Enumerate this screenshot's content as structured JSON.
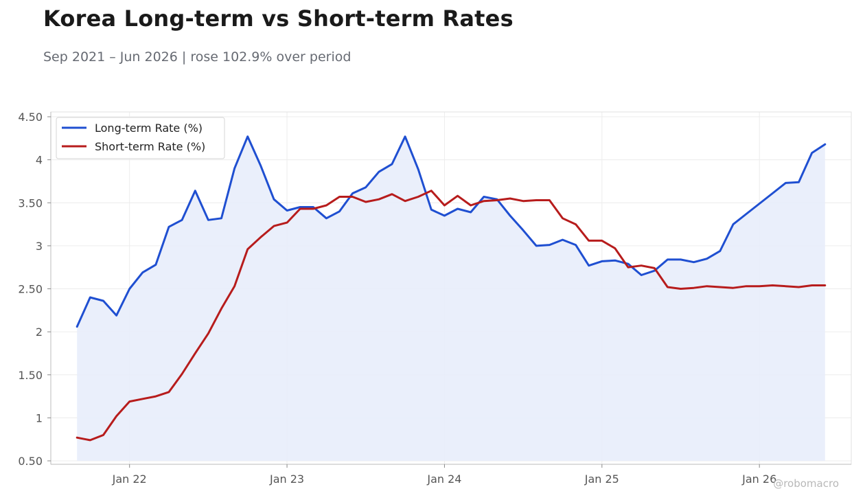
{
  "header": {
    "title": "Korea Long-term vs Short-term Rates",
    "subtitle": "Sep 2021 – Jun 2026 | rose 102.9% over period"
  },
  "watermark": "@robomacro",
  "colors": {
    "long": "#1f4fd1",
    "short": "#b71c1c",
    "fill": "#e8edfb",
    "grid": "#ececec",
    "axis": "#555"
  },
  "chart_data": {
    "type": "line",
    "title": "Korea Long-term vs Short-term Rates",
    "xlabel": "",
    "ylabel": "",
    "ylim": [
      0.5,
      4.5
    ],
    "xlim": [
      "2021-07",
      "2026-08"
    ],
    "grid": true,
    "legend": "top-left",
    "yticks": [
      0.5,
      1,
      1.5,
      2,
      2.5,
      3,
      3.5,
      4,
      4.5
    ],
    "ytick_labels": [
      "0.50",
      "1",
      "1.50",
      "2",
      "2.50",
      "3",
      "3.50",
      "4",
      "4.50"
    ],
    "xticks": [
      "2022-01",
      "2023-01",
      "2024-01",
      "2025-01",
      "2026-01"
    ],
    "xtick_labels": [
      "Jan 22",
      "Jan 23",
      "Jan 24",
      "Jan 25",
      "Jan 26"
    ],
    "x": [
      "2021-09",
      "2021-10",
      "2021-11",
      "2021-12",
      "2022-01",
      "2022-02",
      "2022-03",
      "2022-04",
      "2022-05",
      "2022-06",
      "2022-07",
      "2022-08",
      "2022-09",
      "2022-10",
      "2022-11",
      "2022-12",
      "2023-01",
      "2023-02",
      "2023-03",
      "2023-04",
      "2023-05",
      "2023-06",
      "2023-07",
      "2023-08",
      "2023-09",
      "2023-10",
      "2023-11",
      "2023-12",
      "2024-01",
      "2024-02",
      "2024-03",
      "2024-04",
      "2024-05",
      "2024-06",
      "2024-07",
      "2024-08",
      "2024-09",
      "2024-10",
      "2024-11",
      "2024-12",
      "2025-01",
      "2025-02",
      "2025-03",
      "2025-04",
      "2025-05",
      "2025-06",
      "2025-07",
      "2025-08",
      "2025-09",
      "2025-10",
      "2025-11",
      "2025-12",
      "2026-01",
      "2026-02",
      "2026-03",
      "2026-04",
      "2026-05",
      "2026-06"
    ],
    "series": [
      {
        "name": "Long-term Rate (%)",
        "fill": true,
        "values": [
          2.06,
          2.4,
          2.36,
          2.19,
          2.5,
          2.69,
          2.78,
          3.22,
          3.3,
          3.64,
          3.3,
          3.32,
          3.9,
          4.27,
          3.93,
          3.54,
          3.41,
          3.45,
          3.45,
          3.32,
          3.4,
          3.61,
          3.68,
          3.86,
          3.95,
          4.27,
          3.89,
          3.42,
          3.35,
          3.43,
          3.39,
          3.57,
          3.54,
          3.35,
          3.18,
          3.0,
          3.01,
          3.07,
          3.01,
          2.77,
          2.82,
          2.83,
          2.79,
          2.66,
          2.71,
          2.84,
          2.84,
          2.81,
          2.85,
          2.94,
          3.25,
          3.37,
          3.49,
          3.61,
          3.73,
          3.74,
          4.08,
          4.18
        ]
      },
      {
        "name": "Short-term Rate (%)",
        "fill": false,
        "values": [
          0.77,
          0.74,
          0.8,
          1.02,
          1.19,
          1.22,
          1.25,
          1.3,
          1.51,
          1.75,
          1.98,
          2.27,
          2.53,
          2.96,
          3.1,
          3.23,
          3.27,
          3.43,
          3.43,
          3.47,
          3.57,
          3.57,
          3.51,
          3.54,
          3.6,
          3.52,
          3.57,
          3.64,
          3.47,
          3.58,
          3.47,
          3.52,
          3.53,
          3.55,
          3.52,
          3.53,
          3.53,
          3.32,
          3.25,
          3.06,
          3.06,
          2.97,
          2.75,
          2.77,
          2.74,
          2.52,
          2.5,
          2.51,
          2.53,
          2.52,
          2.51,
          2.53,
          2.53,
          2.54,
          2.53,
          2.52,
          2.54,
          2.54
        ]
      }
    ]
  }
}
